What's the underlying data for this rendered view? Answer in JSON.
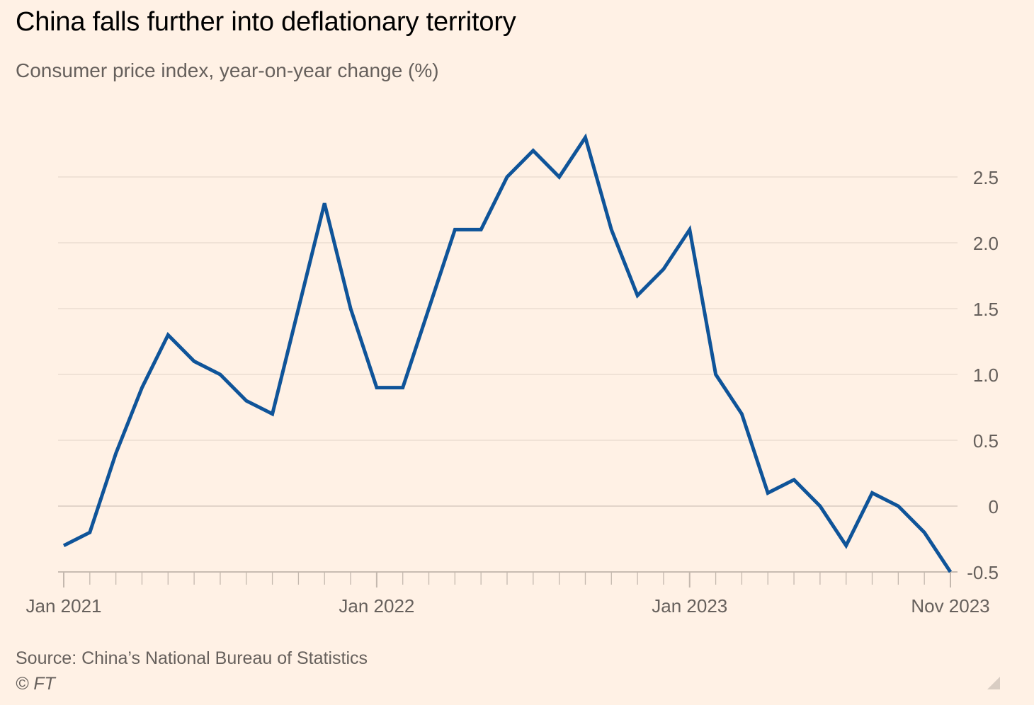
{
  "title": "China falls further into deflationary territory",
  "subtitle": "Consumer price index, year-on-year change (%)",
  "source": "Source: China’s National Bureau of Statistics",
  "credit": "© FT",
  "colors": {
    "background": "#fff1e5",
    "line": "#0f5499",
    "grid": "#e6d9ce",
    "text": "#66605c"
  },
  "chart_data": {
    "type": "line",
    "title": "China falls further into deflationary territory",
    "subtitle": "Consumer price index, year-on-year change (%)",
    "x": [
      "2021-01",
      "2021-02",
      "2021-03",
      "2021-04",
      "2021-05",
      "2021-06",
      "2021-07",
      "2021-08",
      "2021-09",
      "2021-10",
      "2021-11",
      "2021-12",
      "2022-01",
      "2022-02",
      "2022-03",
      "2022-04",
      "2022-05",
      "2022-06",
      "2022-07",
      "2022-08",
      "2022-09",
      "2022-10",
      "2022-11",
      "2022-12",
      "2023-01",
      "2023-02",
      "2023-03",
      "2023-04",
      "2023-05",
      "2023-06",
      "2023-07",
      "2023-08",
      "2023-09",
      "2023-10",
      "2023-11"
    ],
    "series": [
      {
        "values": [
          -0.3,
          -0.2,
          0.4,
          0.9,
          1.3,
          1.1,
          1.0,
          0.8,
          0.7,
          1.5,
          2.3,
          1.5,
          0.9,
          0.9,
          1.5,
          2.1,
          2.1,
          2.5,
          2.7,
          2.5,
          2.8,
          2.1,
          1.6,
          1.8,
          2.1,
          1.0,
          0.7,
          0.1,
          0.2,
          0.0,
          -0.3,
          0.1,
          0.0,
          -0.2,
          -0.5
        ]
      }
    ],
    "x_tick_labels": [
      "Jan 2021",
      "Jan 2022",
      "Jan 2023",
      "Nov 2023"
    ],
    "x_tick_label_indices": [
      0,
      12,
      24,
      34
    ],
    "y_ticks": [
      -0.5,
      0,
      0.5,
      1.0,
      1.5,
      2.0,
      2.5
    ],
    "y_tick_labels": [
      "-0.5",
      "0",
      "0.5",
      "1.0",
      "1.5",
      "2.0",
      "2.5"
    ],
    "ylim": [
      -0.5,
      2.8
    ],
    "y_axis_side": "right",
    "grid": true
  }
}
